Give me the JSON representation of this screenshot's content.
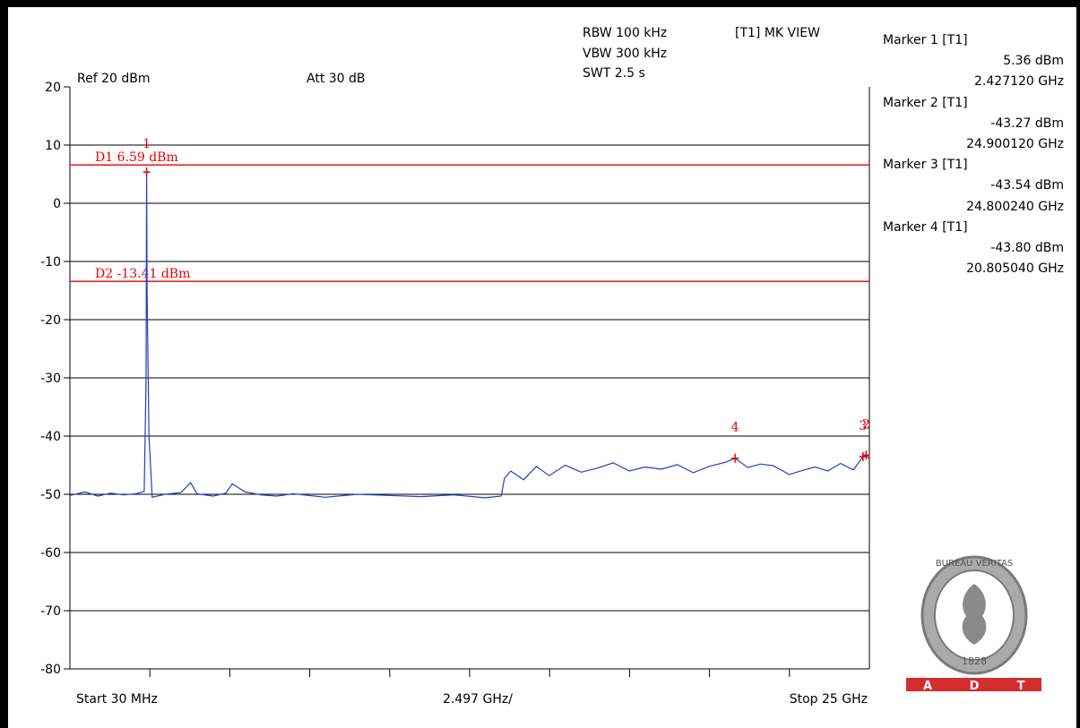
{
  "header": {
    "ref": "Ref 20 dBm",
    "att": "Att  30 dB",
    "rbw": "RBW 100 kHz",
    "vbw": "VBW 300 kHz",
    "swt": "SWT 2.5 s",
    "mode": "[T1] MK VIEW"
  },
  "marker_table": [
    {
      "label": "Marker 1 [T1]",
      "level": "5.36 dBm",
      "freq": "2.427120 GHz"
    },
    {
      "label": "Marker 2 [T1]",
      "level": "-43.27 dBm",
      "freq": "24.900120 GHz"
    },
    {
      "label": "Marker 3 [T1]",
      "level": "-43.54 dBm",
      "freq": "24.800240 GHz"
    },
    {
      "label": "Marker 4 [T1]",
      "level": "-43.80 dBm",
      "freq": "20.805040 GHz"
    }
  ],
  "footer": {
    "start": "Start 30 MHz",
    "span_per_div": "2.497 GHz/",
    "stop": "Stop 25 GHz"
  },
  "logo": {
    "seal_text": "BUREAU VERITAS",
    "year": "1828",
    "letters": [
      "A",
      "D",
      "T"
    ]
  },
  "colors": {
    "trace": "#1c3fc8",
    "limit": "#e80000",
    "grid": "#000000",
    "logo_bar": "#d42d2d"
  },
  "chart_data": {
    "type": "line",
    "xlim": [
      0.03,
      25
    ],
    "ylim": [
      -80,
      20
    ],
    "x_unit": "GHz",
    "y_unit": "dBm",
    "grid": true,
    "yticks": [
      "20",
      "10",
      "0",
      "-10",
      "-20",
      "-30",
      "-40",
      "-50",
      "-60",
      "-70",
      "-80"
    ],
    "lines": [
      {
        "name": "D1",
        "label": "D1 6.59 dBm",
        "value": 6.59
      },
      {
        "name": "D2",
        "label": "D2 -13.41 dBm",
        "value": -13.41
      }
    ],
    "markers": [
      {
        "id": "1",
        "x": 2.42712,
        "y": 5.36
      },
      {
        "id": "2",
        "x": 24.90012,
        "y": -43.27
      },
      {
        "id": "3",
        "x": 24.80024,
        "y": -43.54
      },
      {
        "id": "4",
        "x": 20.80504,
        "y": -43.8
      }
    ],
    "series": [
      {
        "x": [
          0.03,
          0.5,
          0.9,
          1.3,
          1.7,
          2.1,
          2.35,
          2.41,
          2.427,
          2.44,
          2.5,
          2.6,
          3.0,
          3.5,
          3.8,
          4.0,
          4.5,
          4.9,
          5.1,
          5.5,
          6.0,
          6.5,
          7.0,
          8.0,
          9.0,
          10.0,
          11.0,
          12.0,
          13.0,
          13.5,
          13.6,
          13.8,
          14.2,
          14.6,
          15.0,
          15.5,
          16.0,
          16.5,
          17.0,
          17.5,
          18.0,
          18.5,
          19.0,
          19.5,
          20.0,
          20.5,
          20.8,
          21.2,
          21.6,
          22.0,
          22.5,
          22.9,
          23.3,
          23.7,
          24.1,
          24.5,
          24.8,
          24.9,
          25.0
        ],
        "y": [
          -50.2,
          -49.6,
          -50.3,
          -49.8,
          -50.1,
          -49.9,
          -49.5,
          -30.0,
          5.36,
          -15.0,
          -40.0,
          -50.5,
          -50.0,
          -49.7,
          -48.0,
          -49.9,
          -50.3,
          -49.8,
          -48.2,
          -49.6,
          -50.1,
          -50.3,
          -49.9,
          -50.5,
          -50.0,
          -50.2,
          -50.4,
          -50.1,
          -50.6,
          -50.3,
          -47.3,
          -46.0,
          -47.5,
          -45.2,
          -46.8,
          -45.0,
          -46.2,
          -45.5,
          -44.6,
          -46.0,
          -45.3,
          -45.7,
          -44.9,
          -46.3,
          -45.2,
          -44.5,
          -43.8,
          -45.4,
          -44.8,
          -45.1,
          -46.6,
          -45.9,
          -45.3,
          -46.0,
          -44.7,
          -45.8,
          -43.54,
          -43.27,
          -43.9
        ]
      }
    ]
  }
}
